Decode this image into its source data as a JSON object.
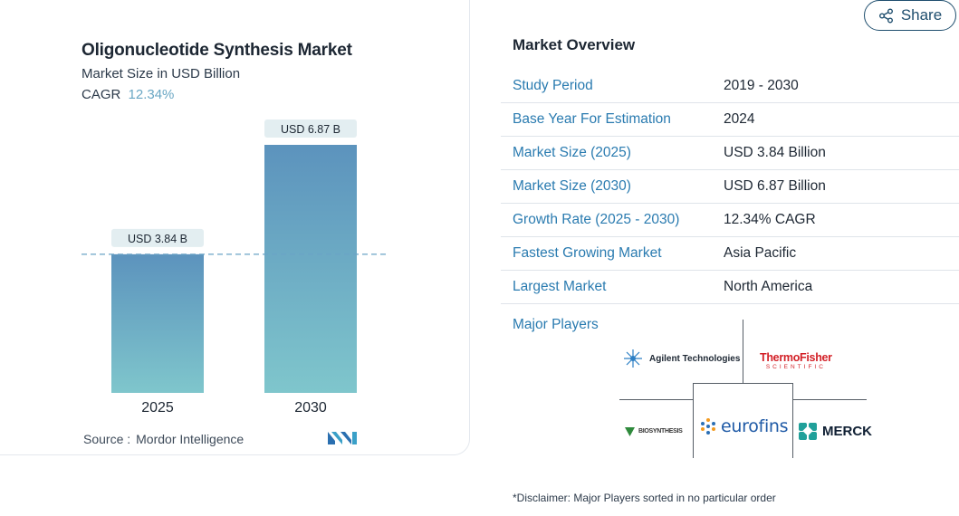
{
  "chart_data": {
    "type": "bar",
    "title": "Oligonucleotide Synthesis Market",
    "subtitle": "Market Size in USD Billion",
    "cagr_label": "CAGR",
    "cagr_value": "12.34%",
    "categories": [
      "2025",
      "2030"
    ],
    "values": [
      3.84,
      6.87
    ],
    "data_labels": [
      "USD 3.84 B",
      "USD 6.87 B"
    ],
    "reference_line": 3.84,
    "ylim": [
      0,
      6.87
    ],
    "grid": false,
    "colors": {
      "bar_top": "#5c93bd",
      "bar_bottom": "#7fc6cc",
      "label_bg": "#e3eef1",
      "ref_line": "#6aa4c6"
    }
  },
  "source": {
    "label": "Source :",
    "value": "Mordor Intelligence"
  },
  "share": {
    "label": "Share"
  },
  "overview": {
    "title": "Market Overview",
    "rows": [
      {
        "label": "Study Period",
        "value": "2019 - 2030"
      },
      {
        "label": "Base Year For Estimation",
        "value": "2024"
      },
      {
        "label": "Market Size (2025)",
        "value": "USD 3.84 Billion"
      },
      {
        "label": "Market Size (2030)",
        "value": "USD 6.87 Billion"
      },
      {
        "label": "Growth Rate (2025 - 2030)",
        "value": "12.34% CAGR"
      },
      {
        "label": "Fastest Growing Market",
        "value": "Asia Pacific"
      },
      {
        "label": "Largest Market",
        "value": "North America"
      }
    ]
  },
  "major_players": {
    "label": "Major Players",
    "logos": {
      "agilent": "Agilent Technologies",
      "thermo_top": "ThermoFisher",
      "thermo_bottom": "SCIENTIFIC",
      "biosynthesis": "BIOSYNTHESIS",
      "eurofins": "eurofins",
      "merck": "MERCK"
    }
  },
  "disclaimer": "*Disclaimer: Major Players sorted in no particular order",
  "colors": {
    "accent_link": "#2a7bb0",
    "share_border": "#1f4e6e"
  }
}
